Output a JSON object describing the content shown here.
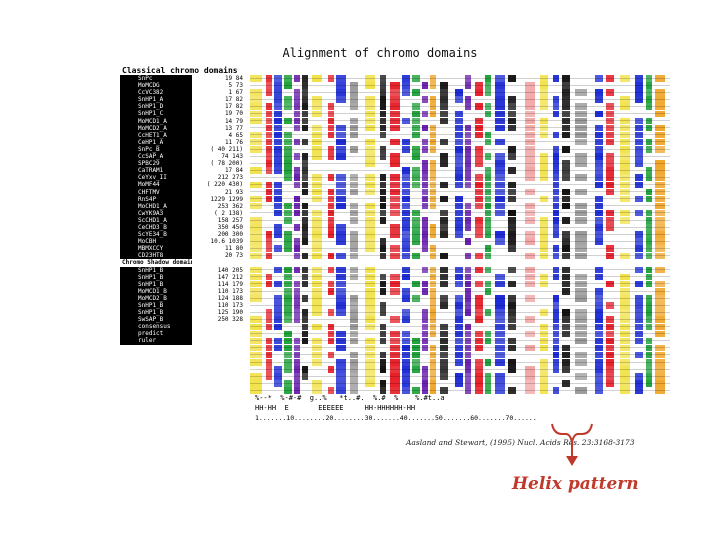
{
  "figure": {
    "title": "Alignment of chromo domains",
    "sections": [
      {
        "header": "Classical chromo domains",
        "rows": [
          {
            "name": "SnPc",
            "range": "19   84"
          },
          {
            "name": "MoMCDG",
            "range": "5   73"
          },
          {
            "name": "CcVC382",
            "range": "1   67"
          },
          {
            "name": "SnHP1_A",
            "range": "17   82"
          },
          {
            "name": "SnHP1_D",
            "range": "17   82"
          },
          {
            "name": "SnHP1_C",
            "range": "19   70"
          },
          {
            "name": "MoMCD1_A",
            "range": "14   79"
          },
          {
            "name": "MoMCD2_A",
            "range": "13   77"
          },
          {
            "name": "CcHET1_A",
            "range": "4   65"
          },
          {
            "name": "CeHP1_A",
            "range": "11   76"
          },
          {
            "name": "SnPc_B",
            "range": "( 40  211)"
          },
          {
            "name": "CcSAP_A",
            "range": "74  143"
          },
          {
            "name": "SPBC29",
            "range": "( 78  200)"
          },
          {
            "name": "CaTRAM1",
            "range": "17   84"
          },
          {
            "name": "CeYxv_II",
            "range": "212  273"
          },
          {
            "name": "MoMF44",
            "range": "( 220  430)"
          },
          {
            "name": "CHFTMV",
            "range": "21   93"
          },
          {
            "name": "RnS4P",
            "range": "1229 1299"
          },
          {
            "name": "MoCHD1_A",
            "range": "253  362"
          },
          {
            "name": "CwYK9A3",
            "range": "( 2  138)"
          },
          {
            "name": "ScCHD1_A",
            "range": "158  257"
          },
          {
            "name": "CeCHD3_B",
            "range": "350  450"
          },
          {
            "name": "ScYE34_B",
            "range": "200  300"
          },
          {
            "name": "MoCBH",
            "range": "10.6 1039"
          },
          {
            "name": "MBMXCCY",
            "range": "11   80"
          },
          {
            "name": "CD23HT8",
            "range": "20   73"
          }
        ]
      },
      {
        "header": "Chromo Shadow domains",
        "rows": [
          {
            "name": "SnHP1_B",
            "range": "140  205"
          },
          {
            "name": "SnHP1_B",
            "range": "147  212"
          },
          {
            "name": "SnHP1_B",
            "range": "114  179"
          },
          {
            "name": "MoMCD1_B",
            "range": "110  173"
          },
          {
            "name": "MoMCD2_B",
            "range": "124  188"
          },
          {
            "name": "SnHP1_B",
            "range": "110  173"
          },
          {
            "name": "SnHP1_B",
            "range": "125  190"
          },
          {
            "name": "SwSAP_B",
            "range": "250  328"
          },
          {
            "name": "consensus",
            "range": ""
          },
          {
            "name": "predict",
            "range": ""
          },
          {
            "name": "ruler",
            "range": ""
          }
        ]
      }
    ],
    "consensus_line": "%--*  %-#-#  g..%   *t..#.  %.#  %    %.#t..a",
    "predict_line": "HH-HH  E       EEEEEE     HH-HHHHHH-HH",
    "ruler_line": "1.......10........20........30.......40.......50.......60.......70......",
    "citation": "Aasland and Stewart, (1995) Nucl. Acids Res. 23:3168-3173",
    "annotation": "Helix pattern",
    "annotation_color": "#c0392b",
    "colors": {
      "red": "#e8202a",
      "blue": "#1c2bd6",
      "green": "#1fa23b",
      "purple": "#6a1fb0",
      "black": "#111111",
      "yellow": "#f2e24a",
      "orange": "#f0a72c",
      "pink": "#f2a6a6",
      "grey": "#9a9a9a"
    }
  }
}
